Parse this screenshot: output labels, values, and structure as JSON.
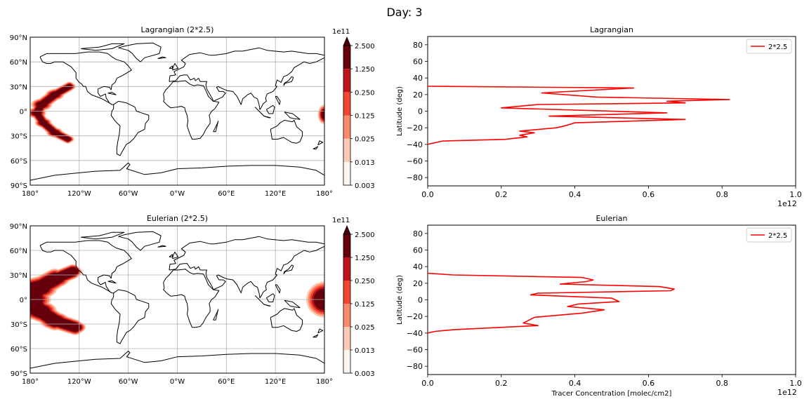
{
  "suptitle": "Day: 3",
  "colorbar": {
    "exponent_label": "1e11",
    "levels": [
      "0.003",
      "0.013",
      "0.025",
      "0.125",
      "0.250",
      "1.250",
      "2.500"
    ],
    "colors": [
      "#fff5f0",
      "#fdcab4",
      "#fc8a6a",
      "#f24632",
      "#bc141a",
      "#67000d",
      "#4a0008"
    ]
  },
  "map_axes": {
    "lon_ticks": [
      "180°",
      "120°W",
      "60°W",
      "0°W",
      "60°E",
      "120°E",
      "180°"
    ],
    "lat_ticks": [
      "90°N",
      "60°N",
      "30°N",
      "0°",
      "30°S",
      "60°S",
      "90°S"
    ]
  },
  "maps": [
    {
      "title": "Lagrangian (2*2.5)"
    },
    {
      "title": "Eulerian (2*2.5)"
    }
  ],
  "chart_data": [
    {
      "type": "line",
      "title": "Lagrangian",
      "xlabel": "",
      "ylabel": "Latitude (deg)",
      "x_exponent": "1e12",
      "xlim": [
        0,
        1.0
      ],
      "ylim": [
        -90,
        90
      ],
      "xticks": [
        "0.0",
        "0.2",
        "0.4",
        "0.6",
        "0.8",
        "1.0"
      ],
      "yticks": [
        "80",
        "60",
        "40",
        "20",
        "0",
        "−20",
        "−40",
        "−60",
        "−80"
      ],
      "legend": "upper right",
      "series": [
        {
          "name": "2*2.5",
          "color": "#ff0000",
          "points": [
            [
              0.0,
              30
            ],
            [
              0.56,
              28
            ],
            [
              0.31,
              22
            ],
            [
              0.46,
              17
            ],
            [
              0.82,
              14
            ],
            [
              0.65,
              12
            ],
            [
              0.7,
              10
            ],
            [
              0.3,
              8
            ],
            [
              0.2,
              4
            ],
            [
              0.65,
              -2
            ],
            [
              0.33,
              -6
            ],
            [
              0.7,
              -10
            ],
            [
              0.4,
              -14
            ],
            [
              0.37,
              -18
            ],
            [
              0.35,
              -20
            ],
            [
              0.25,
              -24
            ],
            [
              0.29,
              -26
            ],
            [
              0.25,
              -29
            ],
            [
              0.27,
              -31
            ],
            [
              0.21,
              -34
            ],
            [
              0.04,
              -36
            ],
            [
              0.0,
              -40
            ]
          ]
        }
      ]
    },
    {
      "type": "line",
      "title": "Eulerian",
      "xlabel": "Tracer Concentration [molec/cm2]",
      "ylabel": "Latitude (deg)",
      "x_exponent": "1e12",
      "xlim": [
        0,
        1.0
      ],
      "ylim": [
        -90,
        90
      ],
      "xticks": [
        "0.0",
        "0.2",
        "0.4",
        "0.6",
        "0.8",
        "1.0"
      ],
      "yticks": [
        "80",
        "60",
        "40",
        "20",
        "0",
        "−20",
        "−40",
        "−60",
        "−80"
      ],
      "legend": "upper right",
      "series": [
        {
          "name": "2*2.5",
          "color": "#ff0000",
          "points": [
            [
              0.0,
              32
            ],
            [
              0.07,
              30
            ],
            [
              0.42,
              27
            ],
            [
              0.45,
              24
            ],
            [
              0.43,
              22
            ],
            [
              0.36,
              19
            ],
            [
              0.63,
              16
            ],
            [
              0.67,
              13
            ],
            [
              0.66,
              11
            ],
            [
              0.3,
              8
            ],
            [
              0.28,
              6
            ],
            [
              0.5,
              2
            ],
            [
              0.52,
              -2
            ],
            [
              0.41,
              -5
            ],
            [
              0.38,
              -8
            ],
            [
              0.48,
              -12
            ],
            [
              0.42,
              -16
            ],
            [
              0.29,
              -21
            ],
            [
              0.26,
              -28
            ],
            [
              0.3,
              -31
            ],
            [
              0.07,
              -36
            ],
            [
              0.02,
              -38
            ],
            [
              0.0,
              -40
            ]
          ]
        }
      ]
    }
  ]
}
